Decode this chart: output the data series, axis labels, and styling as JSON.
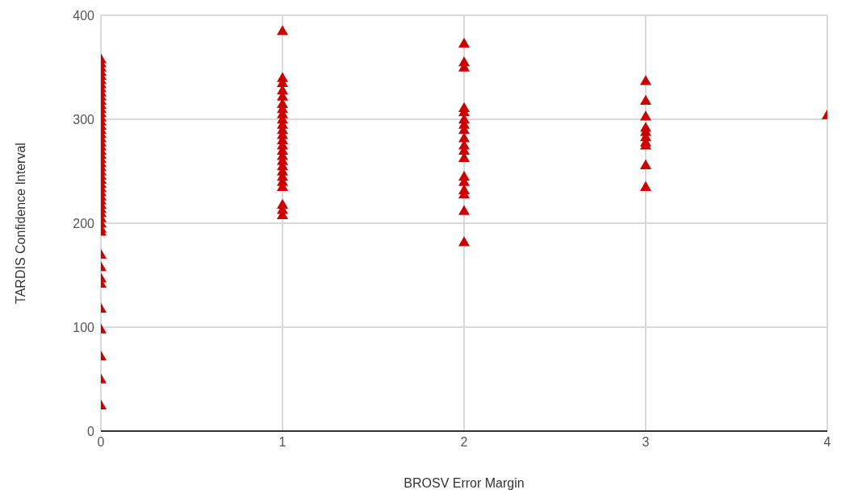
{
  "chart_data": {
    "type": "scatter",
    "xlabel": "BROSV Error Margin",
    "ylabel": "TARDIS Confidence Interval",
    "xlim": [
      0,
      4
    ],
    "ylim": [
      0,
      400
    ],
    "xticks": [
      0,
      1,
      2,
      3,
      4
    ],
    "yticks": [
      0,
      100,
      200,
      300,
      400
    ],
    "grid": true,
    "marker": "triangle",
    "series": [
      {
        "color": "#cc0000",
        "x": [
          0,
          0,
          0,
          0,
          0,
          0,
          0,
          0,
          0,
          0,
          0,
          0,
          0,
          0,
          0,
          0,
          0,
          0,
          0,
          0,
          0,
          0,
          0,
          0,
          0,
          0,
          0,
          0,
          0,
          0,
          0,
          0,
          0,
          0,
          0,
          0,
          0,
          0,
          0,
          0,
          0,
          0,
          0,
          0,
          0,
          0,
          0,
          0,
          0,
          0,
          0,
          1,
          1,
          1,
          1,
          1,
          1,
          1,
          1,
          1,
          1,
          1,
          1,
          1,
          1,
          1,
          1,
          1,
          1,
          1,
          1,
          1,
          1,
          1,
          1,
          1,
          2,
          2,
          2,
          2,
          2,
          2,
          2,
          2,
          2,
          2,
          2,
          2,
          2,
          2,
          2,
          2,
          2,
          2,
          3,
          3,
          3,
          3,
          3,
          3,
          3,
          3,
          3,
          3,
          4
        ],
        "values": [
          358,
          354,
          350,
          346,
          342,
          338,
          334,
          330,
          326,
          322,
          318,
          314,
          310,
          306,
          302,
          298,
          294,
          290,
          286,
          282,
          278,
          274,
          270,
          266,
          262,
          258,
          254,
          250,
          246,
          242,
          238,
          234,
          230,
          226,
          222,
          218,
          214,
          210,
          205,
          200,
          195,
          192,
          170,
          158,
          147,
          142,
          118,
          98,
          72,
          50,
          25,
          385,
          340,
          335,
          328,
          322,
          315,
          310,
          305,
          300,
          295,
          290,
          285,
          280,
          275,
          270,
          265,
          260,
          255,
          250,
          245,
          240,
          235,
          218,
          213,
          208,
          373,
          355,
          350,
          311,
          307,
          300,
          295,
          290,
          282,
          275,
          270,
          263,
          245,
          240,
          232,
          228,
          212,
          182,
          337,
          318,
          303,
          292,
          288,
          283,
          278,
          275,
          256,
          235,
          304
        ]
      }
    ]
  }
}
